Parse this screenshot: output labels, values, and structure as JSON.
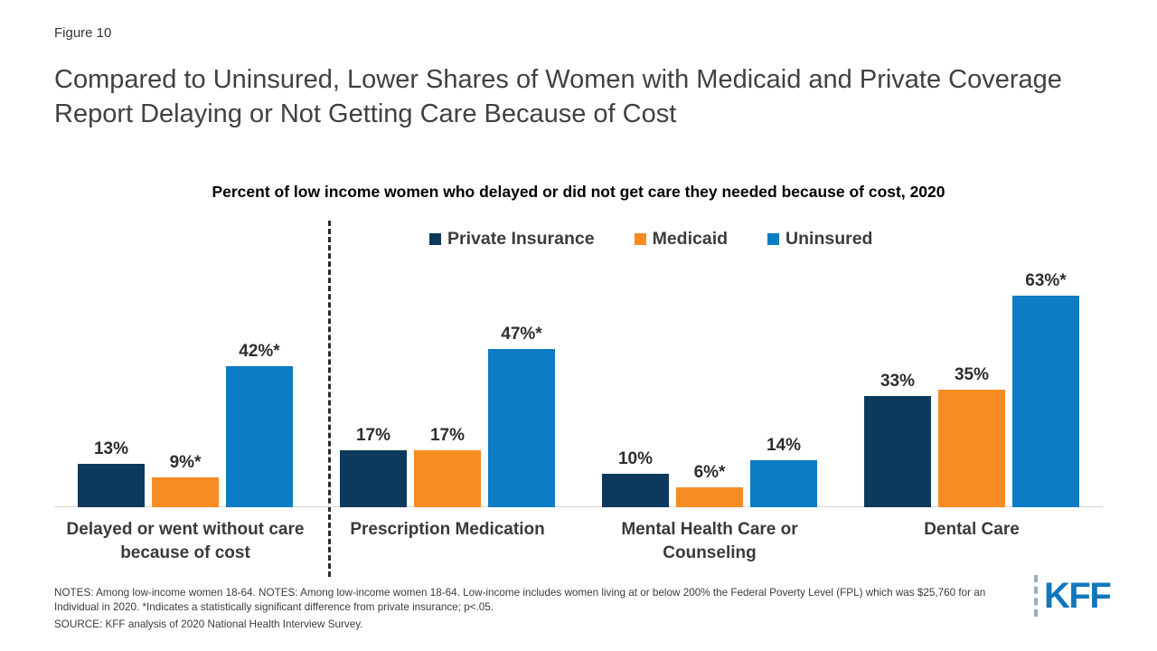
{
  "figure_label": "Figure 10",
  "title": "Compared to Uninsured, Lower Shares of Women with Medicaid and Private Coverage Report Delaying or Not Getting Care Because of Cost",
  "chart_data": {
    "type": "bar",
    "title": "Percent of low income women who delayed or did not get care they needed because of cost, 2020",
    "categories": [
      "Delayed or went without care because of cost",
      "Prescription Medication",
      "Mental Health Care or Counseling",
      "Dental Care"
    ],
    "series": [
      {
        "name": "Private Insurance",
        "color": "#0d3a5c",
        "values": [
          13,
          17,
          10,
          33
        ],
        "labels": [
          "13%",
          "17%",
          "10%",
          "33%"
        ]
      },
      {
        "name": "Medicaid",
        "color": "#f68b22",
        "values": [
          9,
          17,
          6,
          35
        ],
        "labels": [
          "9%*",
          "17%",
          "6%*",
          "35%"
        ]
      },
      {
        "name": "Uninsured",
        "color": "#0c7cc4",
        "values": [
          42,
          47,
          14,
          63
        ],
        "labels": [
          "42%*",
          "47%*",
          "14%",
          "63%*"
        ]
      }
    ],
    "ylim": [
      0,
      70
    ],
    "grid": false,
    "legend_position": "top",
    "divider_after_category_index": 0,
    "annotation_note": "* indicates statistically significant difference from private insurance"
  },
  "notes": "NOTES: Among low-income women 18-64. NOTES: Among low-income women 18-64. Low-income includes women living at or below 200% the Federal Poverty Level (FPL) which was $25,760 for an Individual in 2020. *Indicates a statistically significant difference from private insurance; p<.05.",
  "source": "SOURCE: KFF analysis of 2020 National Health Interview Survey.",
  "logo_text": "KFF"
}
